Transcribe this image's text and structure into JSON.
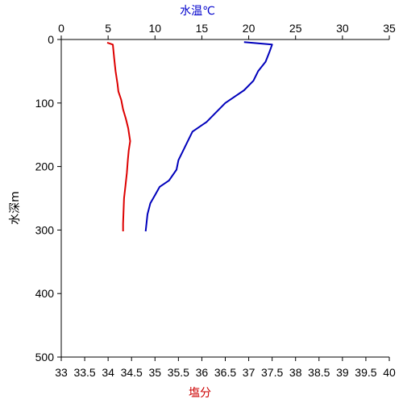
{
  "chart_data": {
    "type": "line",
    "top_axis": {
      "label": "水温℃",
      "label_color": "#0000cc",
      "range": [
        0,
        35
      ],
      "ticks": [
        0,
        5,
        10,
        15,
        20,
        25,
        30,
        35
      ]
    },
    "bottom_axis": {
      "label": "塩分",
      "label_color": "#cc0000",
      "range": [
        33,
        40
      ],
      "ticks": [
        "33",
        "33.5",
        "34",
        "34.5",
        "35",
        "35.5",
        "36",
        "36.5",
        "37",
        "37.5",
        "38",
        "38.5",
        "39",
        "39.5",
        "40"
      ]
    },
    "y_axis": {
      "label": "水深m",
      "range": [
        0,
        500
      ],
      "inverted": true,
      "ticks": [
        0,
        100,
        200,
        300,
        400,
        500
      ]
    },
    "grid": false,
    "series": [
      {
        "axis": "bottom",
        "color": "#dd0000",
        "points": [
          [
            33.98,
            5
          ],
          [
            34.1,
            8
          ],
          [
            34.13,
            30
          ],
          [
            34.16,
            50
          ],
          [
            34.2,
            70
          ],
          [
            34.22,
            82
          ],
          [
            34.28,
            95
          ],
          [
            34.32,
            110
          ],
          [
            34.38,
            125
          ],
          [
            34.43,
            140
          ],
          [
            34.47,
            160
          ],
          [
            34.44,
            175
          ],
          [
            34.42,
            190
          ],
          [
            34.4,
            210
          ],
          [
            34.37,
            230
          ],
          [
            34.34,
            250
          ],
          [
            34.33,
            270
          ],
          [
            34.32,
            290
          ],
          [
            34.32,
            302
          ]
        ]
      },
      {
        "axis": "top",
        "color": "#0000bb",
        "points": [
          [
            19.5,
            4
          ],
          [
            22.5,
            8
          ],
          [
            22.2,
            20
          ],
          [
            21.8,
            35
          ],
          [
            21.0,
            50
          ],
          [
            20.5,
            65
          ],
          [
            19.5,
            80
          ],
          [
            18.5,
            90
          ],
          [
            17.5,
            100
          ],
          [
            16.5,
            115
          ],
          [
            15.5,
            130
          ],
          [
            14.0,
            145
          ],
          [
            13.5,
            160
          ],
          [
            13.0,
            175
          ],
          [
            12.5,
            190
          ],
          [
            12.3,
            205
          ],
          [
            11.5,
            222
          ],
          [
            10.5,
            232
          ],
          [
            10.0,
            245
          ],
          [
            9.5,
            258
          ],
          [
            9.2,
            275
          ],
          [
            9.0,
            302
          ]
        ]
      }
    ]
  }
}
